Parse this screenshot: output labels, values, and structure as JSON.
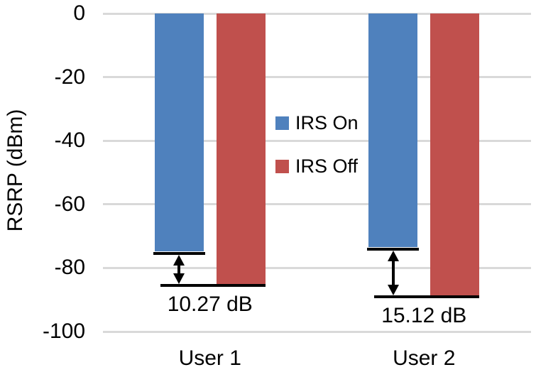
{
  "chart_data": {
    "type": "bar",
    "title": "",
    "ylabel": "RSRP (dBm)",
    "categories": [
      "User 1",
      "User 2"
    ],
    "series": [
      {
        "name": "IRS On",
        "color": "#4F81BD",
        "values": [
          -74.8,
          -73.5
        ]
      },
      {
        "name": "IRS Off",
        "color": "#C0504D",
        "values": [
          -85.07,
          -88.62
        ]
      }
    ],
    "ylim": [
      0,
      -100
    ],
    "yticks": [
      0,
      -20,
      -40,
      -60,
      -80,
      -100
    ],
    "ytick_labels": [
      "0",
      "-20",
      "-40",
      "-60",
      "-80",
      "-100"
    ],
    "grid": "horizontal-gridlines",
    "gridline_color": "#D9D9D9",
    "legend": {
      "position": "inside-center",
      "entries": [
        "IRS On",
        "IRS Off"
      ]
    },
    "annotations": [
      {
        "category": "User 1",
        "label": "10.27 dB"
      },
      {
        "category": "User 2",
        "label": "15.12 dB"
      }
    ]
  }
}
